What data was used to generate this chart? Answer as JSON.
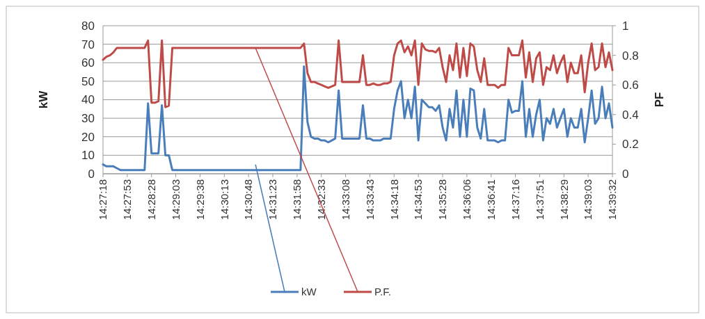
{
  "chart_data": {
    "type": "line",
    "categories": [
      "14:27:18",
      null,
      null,
      null,
      null,
      null,
      null,
      "14:27:53",
      null,
      null,
      null,
      null,
      null,
      null,
      "14:28:28",
      null,
      null,
      null,
      null,
      null,
      null,
      "14:29:03",
      null,
      null,
      null,
      null,
      null,
      null,
      "14:29:38",
      null,
      null,
      null,
      null,
      null,
      null,
      "14:30:13",
      null,
      null,
      null,
      null,
      null,
      null,
      "14:30:48",
      null,
      null,
      null,
      null,
      null,
      null,
      "14:31:23",
      null,
      null,
      null,
      null,
      null,
      null,
      "14:31:58",
      null,
      null,
      null,
      null,
      null,
      null,
      "14:32:33",
      null,
      null,
      null,
      null,
      null,
      null,
      "14:33:08",
      null,
      null,
      null,
      null,
      null,
      null,
      "14:33:43",
      null,
      null,
      null,
      null,
      null,
      null,
      "14:34:18",
      null,
      null,
      null,
      null,
      null,
      null,
      "14:34:53",
      null,
      null,
      null,
      null,
      null,
      null,
      "14:35:28",
      null,
      null,
      null,
      null,
      null,
      null,
      "14:36:06",
      null,
      null,
      null,
      null,
      null,
      null,
      "14:36:41",
      null,
      null,
      null,
      null,
      null,
      null,
      "14:37:16",
      null,
      null,
      null,
      null,
      null,
      null,
      "14:37:51",
      null,
      null,
      null,
      null,
      null,
      null,
      "14:38:29",
      null,
      null,
      null,
      null,
      null,
      null,
      "14:39:03",
      null,
      null,
      null,
      null,
      null,
      null,
      "14:39:32"
    ],
    "series": [
      {
        "name": "kW",
        "color": "#4a7ebb",
        "values": [
          5,
          4,
          4,
          4,
          3,
          2,
          2,
          2,
          2,
          2,
          2,
          2,
          2,
          38,
          11,
          11,
          11,
          37,
          10,
          10,
          2,
          2,
          2,
          2,
          2,
          2,
          2,
          2,
          2,
          2,
          2,
          2,
          2,
          2,
          2,
          2,
          2,
          2,
          2,
          2,
          2,
          2,
          2,
          2,
          2,
          2,
          2,
          2,
          2,
          2,
          2,
          2,
          2,
          2,
          2,
          2,
          2,
          2,
          58,
          28,
          20,
          19,
          19,
          18,
          18,
          17,
          18,
          19,
          45,
          19,
          19,
          19,
          19,
          19,
          19,
          37,
          19,
          19,
          18,
          18,
          18,
          19,
          19,
          19,
          35,
          45,
          50,
          30,
          40,
          30,
          47,
          18,
          40,
          38,
          36,
          36,
          34,
          37,
          25,
          18,
          35,
          25,
          45,
          20,
          40,
          20,
          46,
          45,
          25,
          19,
          35,
          18,
          18,
          18,
          17,
          18,
          18,
          40,
          33,
          34,
          34,
          50,
          20,
          35,
          20,
          32,
          40,
          18,
          30,
          27,
          35,
          25,
          30,
          35,
          20,
          30,
          25,
          25,
          35,
          17,
          30,
          45,
          27,
          30,
          47,
          30,
          38,
          25
        ]
      },
      {
        "name": "P.F.",
        "color": "#be4b48",
        "axis": "y2",
        "values": [
          0.77,
          0.79,
          0.8,
          0.82,
          0.85,
          0.85,
          0.85,
          0.85,
          0.85,
          0.85,
          0.85,
          0.85,
          0.85,
          0.9,
          0.48,
          0.48,
          0.49,
          0.9,
          0.45,
          0.46,
          0.85,
          0.85,
          0.85,
          0.85,
          0.85,
          0.85,
          0.85,
          0.85,
          0.85,
          0.85,
          0.85,
          0.85,
          0.85,
          0.85,
          0.85,
          0.85,
          0.85,
          0.85,
          0.85,
          0.85,
          0.85,
          0.85,
          0.85,
          0.85,
          0.85,
          0.85,
          0.85,
          0.85,
          0.85,
          0.85,
          0.85,
          0.85,
          0.85,
          0.85,
          0.85,
          0.85,
          0.85,
          0.85,
          0.88,
          0.68,
          0.62,
          0.62,
          0.61,
          0.6,
          0.59,
          0.58,
          0.59,
          0.6,
          0.9,
          0.62,
          0.62,
          0.62,
          0.62,
          0.62,
          0.62,
          0.8,
          0.6,
          0.6,
          0.61,
          0.6,
          0.6,
          0.61,
          0.61,
          0.62,
          0.8,
          0.88,
          0.9,
          0.82,
          0.86,
          0.8,
          0.9,
          0.6,
          0.88,
          0.84,
          0.83,
          0.83,
          0.82,
          0.85,
          0.72,
          0.62,
          0.8,
          0.7,
          0.88,
          0.65,
          0.85,
          0.66,
          0.88,
          0.86,
          0.7,
          0.62,
          0.78,
          0.6,
          0.6,
          0.6,
          0.58,
          0.6,
          0.6,
          0.85,
          0.8,
          0.8,
          0.8,
          0.9,
          0.65,
          0.82,
          0.62,
          0.78,
          0.82,
          0.6,
          0.72,
          0.7,
          0.8,
          0.68,
          0.75,
          0.8,
          0.62,
          0.75,
          0.68,
          0.68,
          0.8,
          0.55,
          0.75,
          0.88,
          0.7,
          0.72,
          0.88,
          0.72,
          0.82,
          0.7
        ]
      }
    ],
    "ylabel": "kW",
    "y2label": "PF",
    "ylim": [
      0,
      80
    ],
    "yticks": [
      0,
      10,
      20,
      30,
      40,
      50,
      60,
      70,
      80
    ],
    "y2lim": [
      0,
      1
    ],
    "y2ticks": [
      0,
      0.2,
      0.4,
      0.6,
      0.8,
      1
    ],
    "grid": "y",
    "legend": "bottom"
  }
}
